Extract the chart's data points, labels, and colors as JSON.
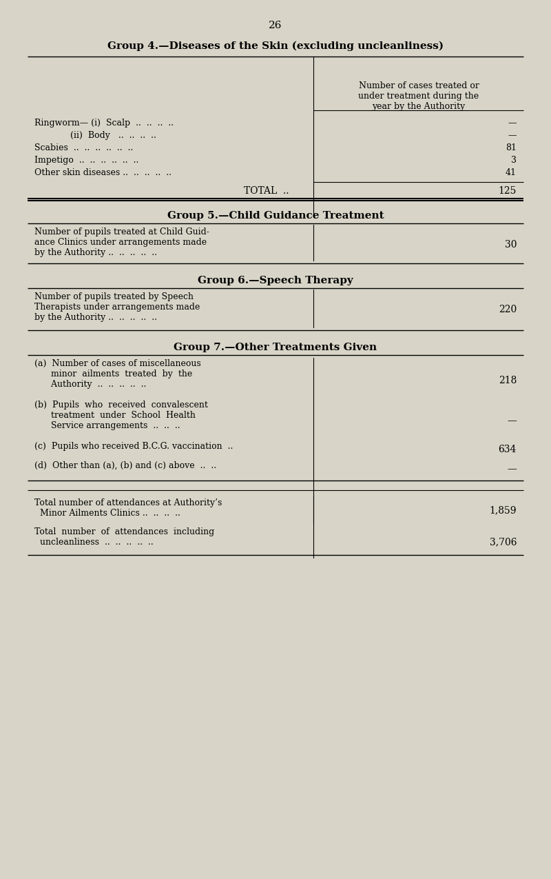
{
  "bg_color": "#d8d5c8",
  "page_number": "26",
  "group4_title": "Group 4.—Diseases of the Skin (excluding uncleanliness)",
  "group4_col_header": "Number of cases treated or\nunder treatment during the\nyear by the Authority",
  "group4_rows": [
    {
      "label": "Ringworm— (i)  Scalp  ..  ..  ..  ..",
      "value": "—"
    },
    {
      "label": "             (ii)  Body   ..  ..  ..  ..",
      "value": "—"
    },
    {
      "label": "Scabies  ..  ..  ..  ..  ..  ..",
      "value": "81"
    },
    {
      "label": "Impetigo  ..  ..  ..  ..  ..  ..",
      "value": "3"
    },
    {
      "label": "Other skin diseases ..  ..  ..  ..  ..",
      "value": "41"
    }
  ],
  "group4_total_label": "TOTAL  ..",
  "group4_total_value": "125",
  "group5_title": "Group 5.—Child Guidance Treatment",
  "group5_row_label": "Number of pupils treated at Child Guid-\nance Clinics under arrangements made\nby the Authority ..  ..  ..  ..  ..",
  "group5_value": "30",
  "group6_title": "Group 6.—Speech Therapy",
  "group6_row_label": "Number of pupils treated by Speech\nTherapists under arrangements made\nby the Authority ..  ..  ..  ..  ..",
  "group6_value": "220",
  "group7_title": "Group 7.—Other Treatments Given",
  "group7_rows": [
    {
      "label": "(a)  Number of cases of miscellaneous\n      minor  ailments  treated  by  the\n      Authority  ..  ..  ..  ..  ..",
      "value": "218"
    },
    {
      "label": "(b)  Pupils  who  received  convalescent\n      treatment  under  School  Health\n      Service arrangements  ..  ..  ..",
      "value": "—"
    },
    {
      "label": "(c)  Pupils who received B.C.G. vaccination  ..",
      "value": "634"
    },
    {
      "label": "(d)  Other than (a), (b) and (c) above  ..  ..",
      "value": "—"
    }
  ],
  "footer_row1_label": "Total number of attendances at Authority’s\n  Minor Ailments Clinics ..  ..  ..  ..",
  "footer_row1_value": "1,859",
  "footer_row2_label": "Total  number  of  attendances  including\n  uncleanliness  ..  ..  ..  ..  ..",
  "footer_row2_value": "3,706"
}
